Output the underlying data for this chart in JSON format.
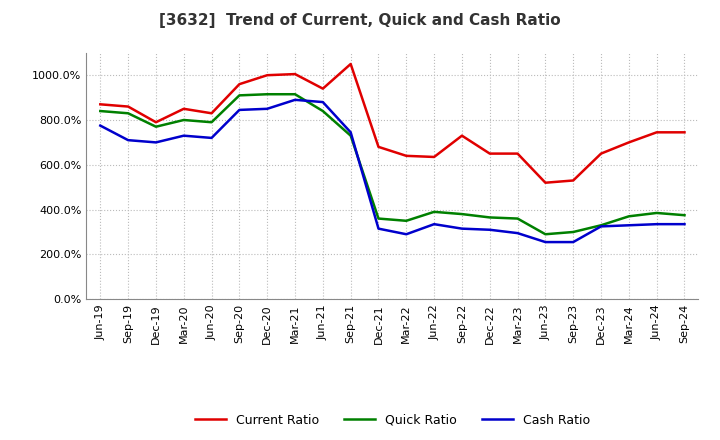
{
  "title": "[3632]  Trend of Current, Quick and Cash Ratio",
  "x_labels": [
    "Jun-19",
    "Sep-19",
    "Dec-19",
    "Mar-20",
    "Jun-20",
    "Sep-20",
    "Dec-20",
    "Mar-21",
    "Jun-21",
    "Sep-21",
    "Dec-21",
    "Mar-22",
    "Jun-22",
    "Sep-22",
    "Dec-22",
    "Mar-23",
    "Jun-23",
    "Sep-23",
    "Dec-23",
    "Mar-24",
    "Jun-24",
    "Sep-24"
  ],
  "current_ratio": [
    870,
    860,
    790,
    850,
    830,
    960,
    1000,
    1005,
    940,
    1050,
    680,
    640,
    635,
    730,
    650,
    650,
    520,
    530,
    650,
    700,
    745,
    745
  ],
  "quick_ratio": [
    840,
    830,
    770,
    800,
    790,
    910,
    915,
    915,
    840,
    730,
    360,
    350,
    390,
    380,
    365,
    360,
    290,
    300,
    330,
    370,
    385,
    375
  ],
  "cash_ratio": [
    775,
    710,
    700,
    730,
    720,
    845,
    850,
    890,
    880,
    745,
    315,
    290,
    335,
    315,
    310,
    295,
    255,
    255,
    325,
    330,
    335,
    335
  ],
  "current_color": "#e00000",
  "quick_color": "#008000",
  "cash_color": "#0000cc",
  "ylim_min": 0,
  "ylim_max": 1100,
  "yticks": [
    0,
    200,
    400,
    600,
    800,
    1000
  ],
  "background_color": "#ffffff",
  "grid_color": "#bbbbbb",
  "legend_labels": [
    "Current Ratio",
    "Quick Ratio",
    "Cash Ratio"
  ],
  "linewidth": 1.8
}
